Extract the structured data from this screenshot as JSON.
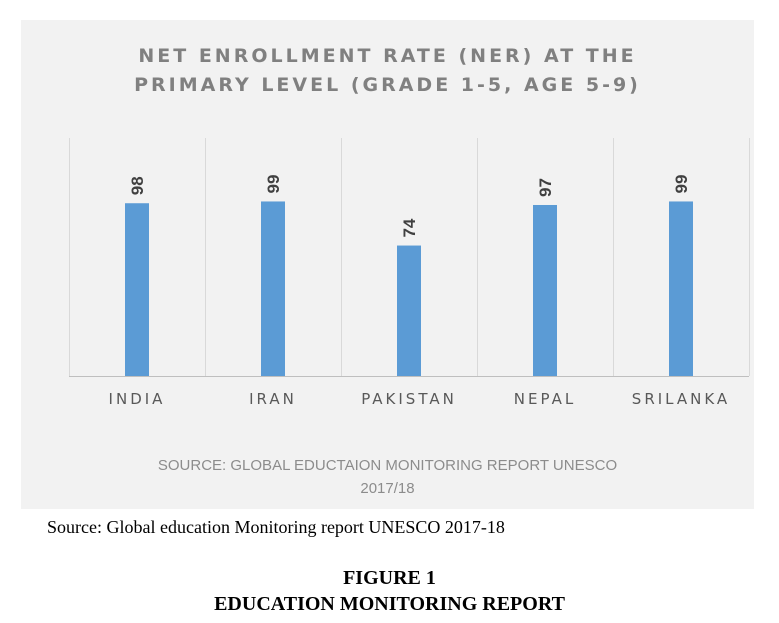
{
  "chart_data": {
    "type": "bar",
    "title_lines": [
      "NET ENROLLMENT RATE (NER) AT THE",
      "PRIMARY LEVEL (GRADE 1-5, AGE 5-9)"
    ],
    "categories": [
      "INDIA",
      "IRAN",
      "PAKISTAN",
      "NEPAL",
      "SRILANKA"
    ],
    "values": [
      98,
      99,
      74,
      97,
      99
    ],
    "data_labels": [
      "98",
      "99",
      "74",
      "97",
      "99"
    ],
    "ylim": [
      0,
      135
    ],
    "grid": "vertical separators between categories",
    "legend": "none",
    "bar_color": "#5b9bd5",
    "background_color": "#f2f2f2",
    "source_lines": [
      "SOURCE: GLOBAL EDUCTAION MONITORING REPORT UNESCO",
      "2017/18"
    ]
  },
  "caption": {
    "source": "Source: Global education Monitoring report UNESCO 2017-18",
    "figure_number": "FIGURE 1",
    "figure_title": "EDUCATION MONITORING REPORT"
  }
}
